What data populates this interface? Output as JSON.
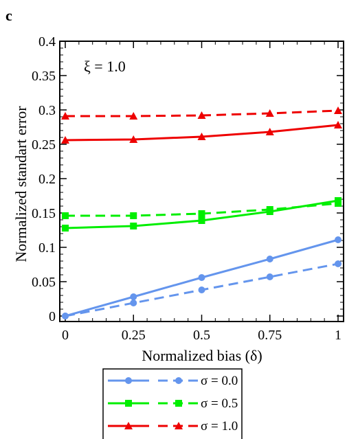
{
  "panel_label": "c",
  "chart_data": {
    "type": "line",
    "annotation": "ξ = 1.0",
    "xlabel": "Normalized bias (δ)",
    "ylabel": "Normalized standart error",
    "xlim": [
      0,
      1
    ],
    "ylim": [
      0,
      0.4
    ],
    "x_ticks": [
      0,
      0.25,
      0.5,
      0.75,
      1
    ],
    "x_tick_labels": [
      "0",
      "0.25",
      "0.5",
      "0.75",
      "1"
    ],
    "y_ticks": [
      0,
      0.05,
      0.1,
      0.15,
      0.2,
      0.25,
      0.3,
      0.35,
      0.4
    ],
    "y_tick_labels": [
      "0",
      "0.05",
      "0.1",
      "0.15",
      "0.2",
      "0.25",
      "0.3",
      "0.35",
      "0.4"
    ],
    "grid": false,
    "legend_position": "below",
    "x": [
      0,
      0.25,
      0.5,
      0.75,
      1
    ],
    "series": [
      {
        "sigma": "0.0",
        "style": "solid",
        "marker": "circle",
        "color": "#6495ed",
        "values": [
          0.0,
          0.028,
          0.056,
          0.083,
          0.111
        ]
      },
      {
        "sigma": "0.0",
        "style": "dashed",
        "marker": "circle",
        "color": "#6495ed",
        "values": [
          0.0,
          0.019,
          0.038,
          0.057,
          0.076
        ]
      },
      {
        "sigma": "0.5",
        "style": "solid",
        "marker": "square",
        "color": "#00ee00",
        "values": [
          0.128,
          0.131,
          0.139,
          0.152,
          0.168
        ]
      },
      {
        "sigma": "0.5",
        "style": "dashed",
        "marker": "square",
        "color": "#00ee00",
        "values": [
          0.146,
          0.146,
          0.149,
          0.155,
          0.164
        ]
      },
      {
        "sigma": "1.0",
        "style": "solid",
        "marker": "triangle",
        "color": "#ee0000",
        "values": [
          0.256,
          0.257,
          0.261,
          0.268,
          0.278
        ]
      },
      {
        "sigma": "1.0",
        "style": "dashed",
        "marker": "triangle",
        "color": "#ee0000",
        "values": [
          0.291,
          0.291,
          0.292,
          0.295,
          0.299
        ]
      }
    ],
    "legend": [
      {
        "label": "σ = 0.0",
        "marker": "circle",
        "color": "#6495ed"
      },
      {
        "label": "σ = 0.5",
        "marker": "square",
        "color": "#00ee00"
      },
      {
        "label": "σ = 1.0",
        "marker": "triangle",
        "color": "#ee0000"
      }
    ]
  }
}
